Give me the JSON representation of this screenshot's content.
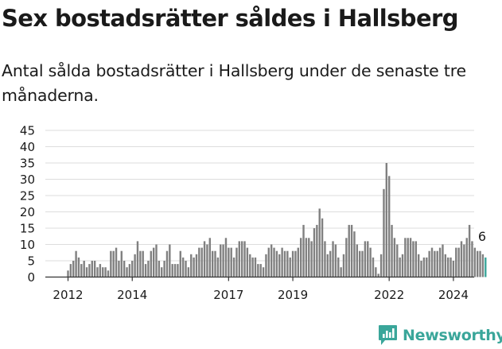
{
  "header": {
    "title": "Sex bostadsrätter såldes i Hallsberg",
    "subtitle": "Antal sålda bostadsrätter i Hallsberg under de senaste tre månaderna."
  },
  "brand": {
    "name": "Newsworthy"
  },
  "colors": {
    "bar": "#808080",
    "highlight": "#3aa69a",
    "axis": "#333333",
    "grid": "#dddddd"
  },
  "chart_data": {
    "type": "bar",
    "title": "",
    "xlabel": "",
    "ylabel": "",
    "ylim": [
      0,
      45
    ],
    "yticks": [
      0,
      5,
      10,
      15,
      20,
      25,
      30,
      35,
      40,
      45
    ],
    "x_start": "2012-01",
    "x_tick_labels": [
      {
        "label": "2012",
        "at": "2012-01"
      },
      {
        "label": "2014",
        "at": "2014-01"
      },
      {
        "label": "2017",
        "at": "2017-01"
      },
      {
        "label": "2019",
        "at": "2019-01"
      },
      {
        "label": "2022",
        "at": "2022-01"
      },
      {
        "label": "2024",
        "at": "2024-01"
      }
    ],
    "annotation": {
      "text": "6",
      "at": "2024-12"
    },
    "highlight_last": true,
    "values": [
      2,
      4,
      5,
      8,
      6,
      4,
      5,
      3,
      4,
      5,
      5,
      3,
      4,
      3,
      3,
      2,
      8,
      8,
      9,
      5,
      8,
      5,
      3,
      4,
      5,
      7,
      11,
      8,
      8,
      4,
      5,
      8,
      9,
      10,
      5,
      3,
      5,
      8,
      10,
      4,
      4,
      4,
      8,
      6,
      5,
      3,
      7,
      6,
      7,
      9,
      9,
      11,
      10,
      12,
      8,
      8,
      6,
      10,
      10,
      12,
      9,
      9,
      6,
      9,
      11,
      11,
      11,
      9,
      7,
      6,
      6,
      4,
      4,
      3,
      7,
      9,
      10,
      9,
      8,
      7,
      9,
      8,
      8,
      6,
      8,
      8,
      9,
      12,
      16,
      12,
      12,
      11,
      15,
      16,
      21,
      18,
      11,
      7,
      8,
      11,
      10,
      6,
      3,
      7,
      12,
      16,
      16,
      14,
      10,
      8,
      8,
      11,
      11,
      9,
      6,
      3,
      1,
      7,
      27,
      35,
      31,
      16,
      12,
      10,
      6,
      7,
      12,
      12,
      12,
      11,
      11,
      7,
      5,
      6,
      6,
      8,
      9,
      8,
      8,
      9,
      10,
      7,
      6,
      6,
      5,
      9,
      9,
      11,
      10,
      12,
      16,
      11,
      9,
      8,
      8,
      7,
      6
    ]
  }
}
